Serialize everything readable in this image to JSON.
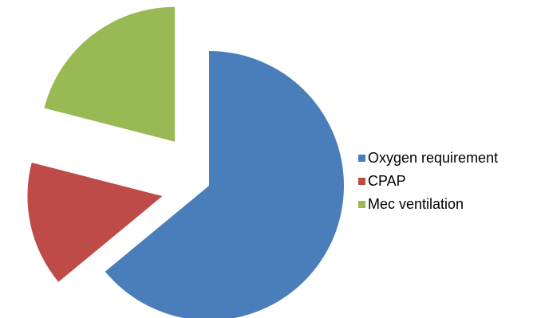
{
  "chart_data": {
    "type": "pie",
    "exploded": true,
    "legend_position": "right",
    "series": [
      {
        "name": "Oxygen requirement",
        "value": 64,
        "color": "#4A7EBB"
      },
      {
        "name": "CPAP",
        "value": 15,
        "color": "#BE4B48"
      },
      {
        "name": "Mec ventilation",
        "value": 21,
        "color": "#98B954"
      }
    ]
  }
}
